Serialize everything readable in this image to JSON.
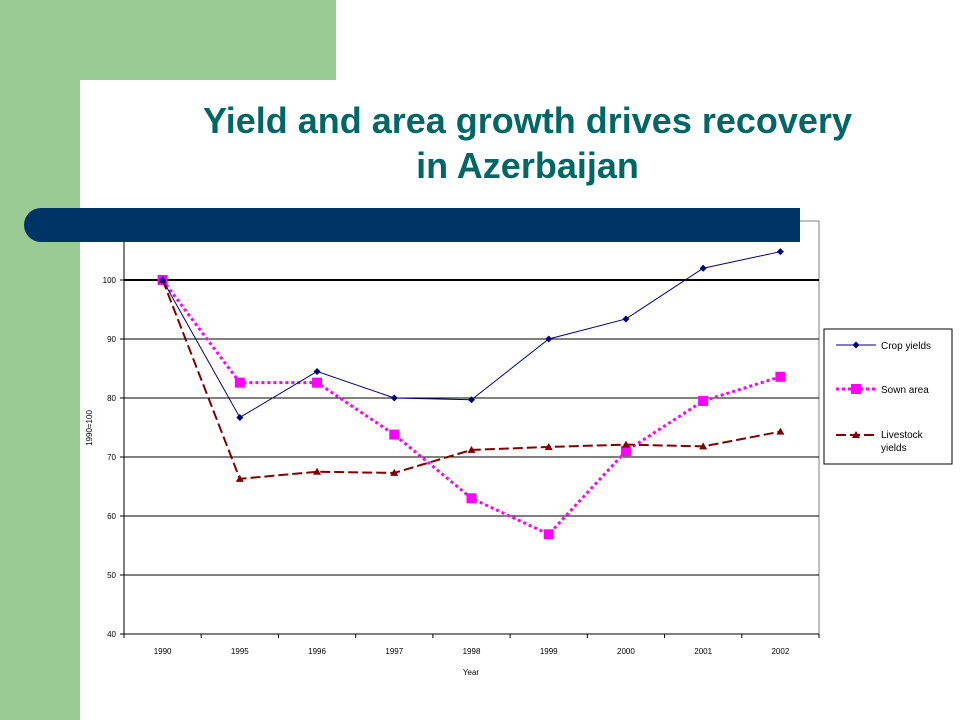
{
  "slide": {
    "title_line1": "Yield and area growth drives recovery",
    "title_line2": "in Azerbaijan",
    "colors": {
      "green_band": "#9bcb95",
      "blue_bar": "#003366",
      "title": "#006666"
    }
  },
  "chart_data": {
    "type": "line",
    "title": "",
    "xlabel": "Year",
    "ylabel": "1990=100",
    "categories": [
      "1990",
      "1995",
      "1996",
      "1997",
      "1998",
      "1999",
      "2000",
      "2001",
      "2002"
    ],
    "ylim": [
      40,
      110
    ],
    "yticks": [
      40,
      50,
      60,
      70,
      80,
      90,
      100,
      110
    ],
    "grid": true,
    "legend_position": "right",
    "series": [
      {
        "name": "Crop yields",
        "values": [
          100,
          76.7,
          84.5,
          80,
          79.7,
          90,
          93.4,
          102,
          104.8
        ],
        "color": "#000080",
        "marker": "diamond",
        "dash": "solid"
      },
      {
        "name": "Sown area",
        "values": [
          100,
          82.6,
          82.6,
          73.8,
          63,
          56.9,
          71,
          79.5,
          83.6
        ],
        "color": "#ff00ff",
        "marker": "square",
        "dash": "dotted"
      },
      {
        "name": "Livestock yields",
        "values": [
          100,
          66.3,
          67.5,
          67.3,
          71.2,
          71.7,
          72.1,
          71.8,
          74.3
        ],
        "color": "#800000",
        "marker": "triangle",
        "dash": "dashed"
      }
    ]
  }
}
